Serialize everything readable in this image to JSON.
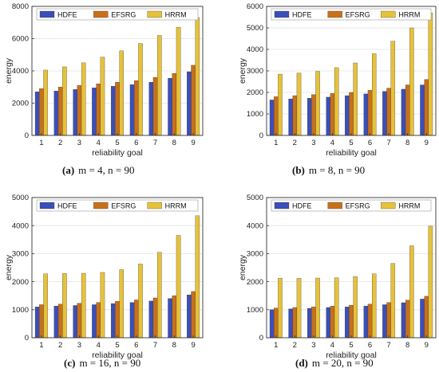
{
  "legend_labels": [
    "HDFE",
    "EFSRG",
    "HRRM"
  ],
  "colors": {
    "HDFE": "#3b4fb8",
    "EFSRG": "#c8701a",
    "HRRM": "#e6c13a"
  },
  "chart_data": [
    {
      "type": "bar",
      "caption_tag": "(a)",
      "caption_text": "m = 4, n = 90",
      "xlabel": "reliability goal",
      "ylabel": "energy",
      "categories": [
        "1",
        "2",
        "3",
        "4",
        "5",
        "6",
        "7",
        "8",
        "9"
      ],
      "ylim": [
        0,
        8000
      ],
      "yticks": [
        0,
        2000,
        4000,
        6000,
        8000
      ],
      "grid": true,
      "legend_position": "top",
      "series": [
        {
          "name": "HDFE",
          "values": [
            2700,
            2750,
            2850,
            2950,
            3050,
            3150,
            3300,
            3550,
            3950
          ]
        },
        {
          "name": "EFSRG",
          "values": [
            2900,
            3000,
            3100,
            3200,
            3300,
            3400,
            3600,
            3850,
            4350
          ]
        },
        {
          "name": "HRRM",
          "values": [
            4050,
            4250,
            4500,
            4850,
            5250,
            5700,
            6200,
            6700,
            7300
          ]
        }
      ]
    },
    {
      "type": "bar",
      "caption_tag": "(b)",
      "caption_text": "m = 8, n = 90",
      "xlabel": "reliability goal",
      "ylabel": "energy",
      "categories": [
        "1",
        "2",
        "3",
        "4",
        "5",
        "6",
        "7",
        "8",
        "9"
      ],
      "ylim": [
        0,
        6000
      ],
      "yticks": [
        0,
        1000,
        2000,
        3000,
        4000,
        5000,
        6000
      ],
      "grid": true,
      "legend_position": "top",
      "series": [
        {
          "name": "HDFE",
          "values": [
            1650,
            1700,
            1730,
            1780,
            1850,
            1930,
            2050,
            2150,
            2350
          ]
        },
        {
          "name": "EFSRG",
          "values": [
            1800,
            1850,
            1900,
            1950,
            2000,
            2100,
            2200,
            2350,
            2600
          ]
        },
        {
          "name": "HRRM",
          "values": [
            2850,
            2900,
            2980,
            3150,
            3370,
            3800,
            4380,
            5000,
            5700
          ]
        }
      ]
    },
    {
      "type": "bar",
      "caption_tag": "(c)",
      "caption_text": "m = 16, n = 90",
      "xlabel": "reliability goal",
      "ylabel": "energy",
      "categories": [
        "1",
        "2",
        "3",
        "4",
        "5",
        "6",
        "7",
        "8",
        "9"
      ],
      "ylim": [
        0,
        5000
      ],
      "yticks": [
        0,
        1000,
        2000,
        3000,
        4000,
        5000
      ],
      "grid": true,
      "legend_position": "top",
      "series": [
        {
          "name": "HDFE",
          "values": [
            1100,
            1130,
            1150,
            1180,
            1220,
            1260,
            1310,
            1400,
            1530
          ]
        },
        {
          "name": "EFSRG",
          "values": [
            1180,
            1200,
            1230,
            1260,
            1300,
            1350,
            1420,
            1500,
            1650
          ]
        },
        {
          "name": "HRRM",
          "values": [
            2280,
            2290,
            2300,
            2330,
            2430,
            2630,
            3050,
            3650,
            4350
          ]
        }
      ]
    },
    {
      "type": "bar",
      "caption_tag": "(d)",
      "caption_text": "m = 20, n = 90",
      "xlabel": "reliability goal",
      "ylabel": "energy",
      "categories": [
        "1",
        "2",
        "3",
        "4",
        "5",
        "6",
        "7",
        "8",
        "9"
      ],
      "ylim": [
        0,
        5000
      ],
      "yticks": [
        0,
        1000,
        2000,
        3000,
        4000,
        5000
      ],
      "grid": true,
      "legend_position": "top",
      "series": [
        {
          "name": "HDFE",
          "values": [
            1000,
            1030,
            1050,
            1080,
            1100,
            1130,
            1180,
            1250,
            1380
          ]
        },
        {
          "name": "EFSRG",
          "values": [
            1060,
            1080,
            1100,
            1130,
            1160,
            1200,
            1260,
            1340,
            1480
          ]
        },
        {
          "name": "HRRM",
          "values": [
            2120,
            2120,
            2130,
            2140,
            2180,
            2280,
            2650,
            3280,
            3980
          ]
        }
      ]
    }
  ]
}
